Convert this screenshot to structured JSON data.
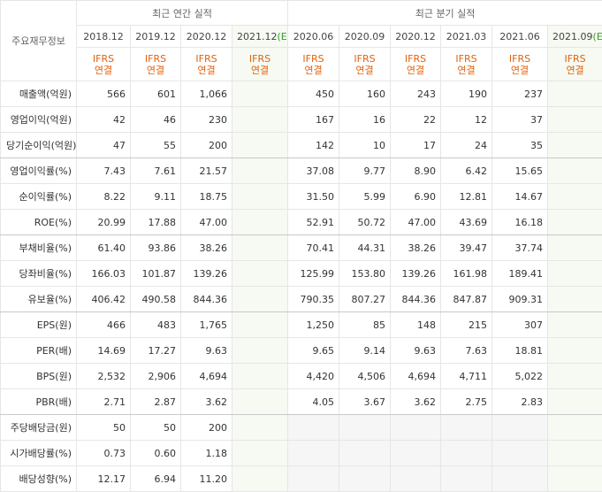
{
  "header": {
    "title": "주요재무정보",
    "groups": [
      "최근 연간 실적",
      "최근 분기 실적"
    ],
    "columns": [
      {
        "date": "2018.12",
        "basis": "IFRS",
        "scope": "연결"
      },
      {
        "date": "2019.12",
        "basis": "IFRS",
        "scope": "연결"
      },
      {
        "date": "2020.12",
        "basis": "IFRS",
        "scope": "연결"
      },
      {
        "date": "2021.12",
        "mark": "(E)",
        "basis": "IFRS",
        "scope": "연결"
      },
      {
        "date": "2020.06",
        "basis": "IFRS",
        "scope": "연결"
      },
      {
        "date": "2020.09",
        "basis": "IFRS",
        "scope": "연결"
      },
      {
        "date": "2020.12",
        "basis": "IFRS",
        "scope": "연결"
      },
      {
        "date": "2021.03",
        "basis": "IFRS",
        "scope": "연결"
      },
      {
        "date": "2021.06",
        "basis": "IFRS",
        "scope": "연결"
      },
      {
        "date": "2021.09",
        "mark": "(E)",
        "basis": "IFRS",
        "scope": "연결"
      }
    ]
  },
  "table": {
    "rows": [
      {
        "label": "매출액(억원)",
        "values": [
          "566",
          "601",
          "1,066",
          null,
          "450",
          "160",
          "243",
          "190",
          "237",
          null
        ]
      },
      {
        "label": "영업이익(억원)",
        "values": [
          "42",
          "46",
          "230",
          null,
          "167",
          "16",
          "22",
          "12",
          "37",
          null
        ]
      },
      {
        "label": "당기순이익(억원)",
        "values": [
          "47",
          "55",
          "200",
          null,
          "142",
          "10",
          "17",
          "24",
          "35",
          null
        ]
      },
      {
        "label": "영업이익률(%)",
        "values": [
          "7.43",
          "7.61",
          "21.57",
          null,
          "37.08",
          "9.77",
          "8.90",
          "6.42",
          "15.65",
          null
        ]
      },
      {
        "label": "순이익률(%)",
        "values": [
          "8.22",
          "9.11",
          "18.75",
          null,
          "31.50",
          "5.99",
          "6.90",
          "12.81",
          "14.67",
          null
        ]
      },
      {
        "label": "ROE(%)",
        "values": [
          "20.99",
          "17.88",
          "47.00",
          null,
          "52.91",
          "50.72",
          "47.00",
          "43.69",
          "16.18",
          null
        ]
      },
      {
        "label": "부채비율(%)",
        "values": [
          "61.40",
          "93.86",
          "38.26",
          null,
          "70.41",
          "44.31",
          "38.26",
          "39.47",
          "37.74",
          null
        ]
      },
      {
        "label": "당좌비율(%)",
        "values": [
          "166.03",
          "101.87",
          "139.26",
          null,
          "125.99",
          "153.80",
          "139.26",
          "161.98",
          "189.41",
          null
        ]
      },
      {
        "label": "유보율(%)",
        "values": [
          "406.42",
          "490.58",
          "844.36",
          null,
          "790.35",
          "807.27",
          "844.36",
          "847.87",
          "909.31",
          null
        ]
      },
      {
        "label": "EPS(원)",
        "values": [
          "466",
          "483",
          "1,765",
          null,
          "1,250",
          "85",
          "148",
          "215",
          "307",
          null
        ]
      },
      {
        "label": "PER(배)",
        "values": [
          "14.69",
          "17.27",
          "9.63",
          null,
          "9.65",
          "9.14",
          "9.63",
          "7.63",
          "18.81",
          null
        ]
      },
      {
        "label": "BPS(원)",
        "values": [
          "2,532",
          "2,906",
          "4,694",
          null,
          "4,420",
          "4,506",
          "4,694",
          "4,711",
          "5,022",
          null
        ]
      },
      {
        "label": "PBR(배)",
        "values": [
          "2.71",
          "2.87",
          "3.62",
          null,
          "4.05",
          "3.67",
          "3.62",
          "2.75",
          "2.83",
          null
        ]
      },
      {
        "label": "주당배당금(원)",
        "values": [
          "50",
          "50",
          "200",
          null,
          null,
          null,
          null,
          null,
          null,
          null
        ]
      },
      {
        "label": "시가배당률(%)",
        "values": [
          "0.73",
          "0.60",
          "1.18",
          null,
          null,
          null,
          null,
          null,
          null,
          null
        ]
      },
      {
        "label": "배당성향(%)",
        "values": [
          "12.17",
          "6.94",
          "11.20",
          null,
          null,
          null,
          null,
          null,
          null,
          null
        ]
      }
    ]
  }
}
